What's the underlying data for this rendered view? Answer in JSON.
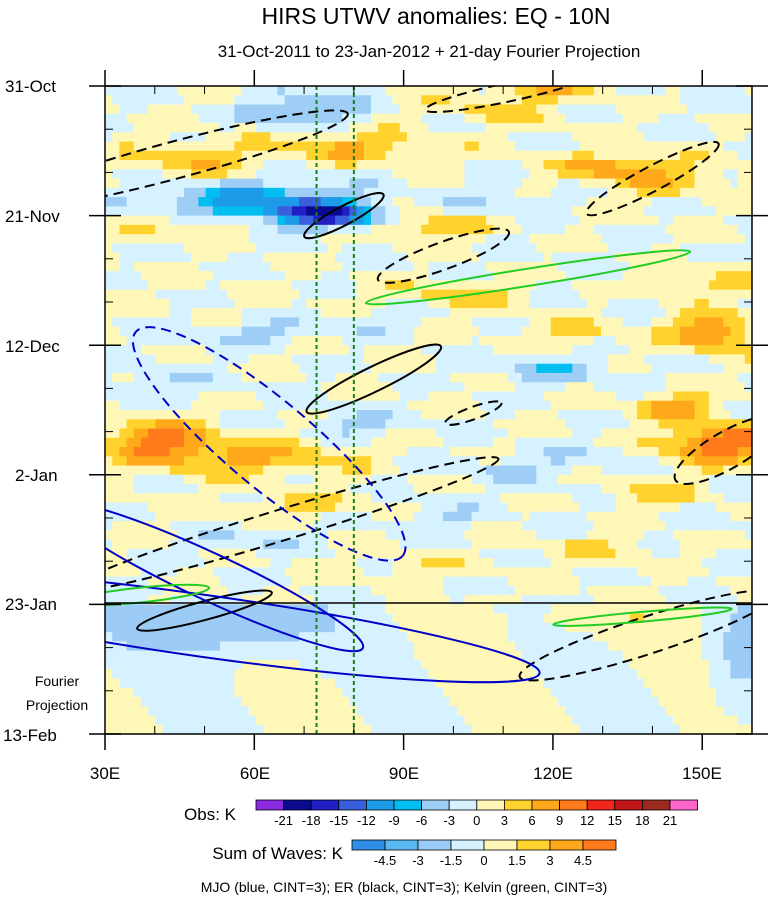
{
  "chart_data": {
    "type": "heatmap",
    "title": "HIRS UTWV anomalies: EQ - 10N",
    "subtitle": "31-Oct-2011 to 23-Jan-2012 + 21-day Fourier Projection",
    "x_axis": {
      "range_deg_e": [
        30,
        160
      ],
      "ticks": [
        30,
        60,
        90,
        120,
        150
      ],
      "tick_labels": [
        "30E",
        "60E",
        "90E",
        "120E",
        "150E"
      ]
    },
    "y_axis": {
      "range_days": [
        0,
        105
      ],
      "ticks": [
        0,
        21,
        42,
        63,
        84,
        105
      ],
      "tick_labels": [
        "31-Oct",
        "21-Nov",
        "12-Dec",
        "2-Jan",
        "23-Jan",
        "13-Feb"
      ]
    },
    "projection_start_day": 84,
    "projection_label": [
      "Fourier",
      "Projection"
    ],
    "reference_lines_deg_e": [
      72.5,
      80
    ],
    "obs_colorbar": {
      "label": "Obs: K",
      "levels": [
        -21,
        -18,
        -15,
        -12,
        -9,
        -6,
        -3,
        0,
        3,
        6,
        9,
        12,
        15,
        18,
        21
      ],
      "colors": [
        "#8a2be2",
        "#0a0a8f",
        "#1f1fc4",
        "#3a5fdc",
        "#1e9be8",
        "#00bff0",
        "#9ecdf5",
        "#d6f2ff",
        "#fff7b8",
        "#ffd22e",
        "#ffa819",
        "#ff7a1a",
        "#f2261a",
        "#c2161a",
        "#9c2a1f",
        "#ff66cc"
      ]
    },
    "waves_colorbar": {
      "label": "Sum of Waves: K",
      "levels": [
        -4.5,
        -3,
        -1.5,
        0,
        1.5,
        3,
        4.5
      ],
      "tick_labels": [
        "-4.5",
        "-3",
        "-1.5",
        "0",
        "1.5",
        "3",
        "4.5"
      ],
      "colors": [
        "#2f8fe8",
        "#5ab8f0",
        "#9cccf5",
        "#d6f2ff",
        "#fff7b8",
        "#ffd22e",
        "#ffa819",
        "#ff7a1a"
      ]
    },
    "contour_legend": "MJO (blue, CINT=3); ER (black, CINT=3); Kelvin (green, CINT=3)",
    "contours": [
      {
        "wave": "ER",
        "color": "#000000",
        "sign": "negative",
        "center": [
          44,
          12
        ],
        "semi_axes_deg_day": [
          36,
          3
        ],
        "tilt_deg": -15
      },
      {
        "wave": "ER",
        "color": "#000000",
        "sign": "negative",
        "center": [
          111,
          1
        ],
        "semi_axes_deg_day": [
          17,
          1.5
        ],
        "tilt_deg": -12
      },
      {
        "wave": "ER",
        "color": "#000000",
        "sign": "negative",
        "center": [
          140,
          15
        ],
        "semi_axes_deg_day": [
          15,
          2
        ],
        "tilt_deg": -28
      },
      {
        "wave": "ER",
        "color": "#000000",
        "sign": "negative",
        "center": [
          98,
          27.5
        ],
        "semi_axes_deg_day": [
          14,
          2.2
        ],
        "tilt_deg": -20
      },
      {
        "wave": "ER",
        "color": "#000000",
        "sign": "negative",
        "center": [
          104,
          53
        ],
        "semi_axes_deg_day": [
          6,
          1
        ],
        "tilt_deg": -20
      },
      {
        "wave": "ER",
        "color": "#000000",
        "sign": "negative",
        "center": [
          66,
          71
        ],
        "semi_axes_deg_day": [
          45,
          2.5
        ],
        "tilt_deg": -17
      },
      {
        "wave": "ER",
        "color": "#000000",
        "sign": "negative",
        "center": [
          139,
          89
        ],
        "semi_axes_deg_day": [
          27,
          3
        ],
        "tilt_deg": -18
      },
      {
        "wave": "ER",
        "color": "#000000",
        "sign": "negative",
        "center": [
          155,
          59
        ],
        "semi_axes_deg_day": [
          12,
          3
        ],
        "tilt_deg": -30
      },
      {
        "wave": "ER",
        "color": "#000000",
        "sign": "positive",
        "center": [
          78,
          21
        ],
        "semi_axes_deg_day": [
          9,
          1.5
        ],
        "tilt_deg": -28
      },
      {
        "wave": "ER",
        "color": "#000000",
        "sign": "positive",
        "center": [
          84,
          47.5
        ],
        "semi_axes_deg_day": [
          15,
          2
        ],
        "tilt_deg": -26
      },
      {
        "wave": "ER",
        "color": "#000000",
        "sign": "positive",
        "center": [
          50,
          85
        ],
        "semi_axes_deg_day": [
          14,
          1.5
        ],
        "tilt_deg": -15
      },
      {
        "wave": "MJO",
        "color": "#0000c8",
        "sign": "negative",
        "center": [
          63,
          58
        ],
        "semi_axes_deg_day": [
          35,
          7
        ],
        "tilt_deg": 40
      },
      {
        "wave": "MJO",
        "color": "#0000c8",
        "sign": "positive",
        "center": [
          51,
          79.5
        ],
        "semi_axes_deg_day": [
          34,
          3.8
        ],
        "tilt_deg": 25
      },
      {
        "wave": "MJO",
        "color": "#0000c8",
        "sign": "positive",
        "center": [
          50,
          87.5
        ],
        "semi_axes_deg_day": [
          68,
          5
        ],
        "tilt_deg": 8
      },
      {
        "wave": "Kelvin",
        "color": "#22cc22",
        "sign": "positive",
        "center": [
          115,
          31
        ],
        "semi_axes_deg_day": [
          33,
          1.4
        ],
        "tilt_deg": -9
      },
      {
        "wave": "Kelvin",
        "color": "#22cc22",
        "sign": "positive",
        "center": [
          37,
          82.5
        ],
        "semi_axes_deg_day": [
          14,
          1.2
        ],
        "tilt_deg": -6
      },
      {
        "wave": "Kelvin",
        "color": "#22cc22",
        "sign": "positive",
        "center": [
          138,
          86
        ],
        "semi_axes_deg_day": [
          18,
          0.8
        ],
        "tilt_deg": -5
      }
    ]
  }
}
